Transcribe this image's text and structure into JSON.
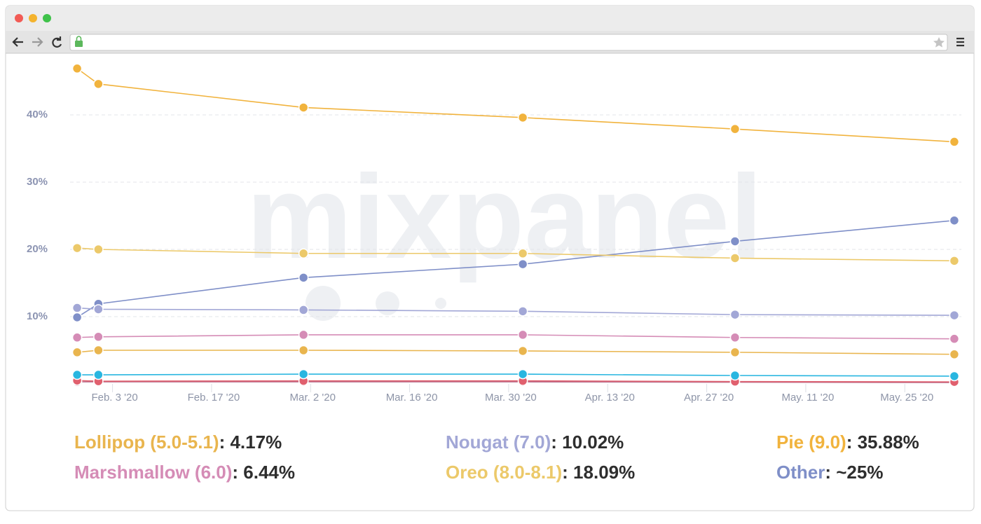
{
  "chart_data": {
    "type": "line",
    "watermark": "mixpanel",
    "x": [
      "2020-01-29",
      "2020-02-01",
      "2020-03-01",
      "2020-04-01",
      "2020-05-01",
      "2020-06-01"
    ],
    "xlim": [
      "2020-01-28",
      "2020-06-02"
    ],
    "xticks": [
      {
        "value": "2020-02-03",
        "label": "Feb. 3 '20"
      },
      {
        "value": "2020-02-17",
        "label": "Feb. 17 '20"
      },
      {
        "value": "2020-03-02",
        "label": "Mar. 2 '20"
      },
      {
        "value": "2020-03-16",
        "label": "Mar. 16 '20"
      },
      {
        "value": "2020-03-30",
        "label": "Mar. 30 '20"
      },
      {
        "value": "2020-04-13",
        "label": "Apr. 13 '20"
      },
      {
        "value": "2020-04-27",
        "label": "Apr. 27 '20"
      },
      {
        "value": "2020-05-11",
        "label": "May. 11 '20"
      },
      {
        "value": "2020-05-25",
        "label": "May. 25 '20"
      }
    ],
    "ylim": [
      0,
      48.75
    ],
    "yticks": [
      {
        "value": 10,
        "label": "10%"
      },
      {
        "value": 20,
        "label": "20%"
      },
      {
        "value": 30,
        "label": "30%"
      },
      {
        "value": 40,
        "label": "40%"
      }
    ],
    "grid": true,
    "series": [
      {
        "name": "Lollipop (5.0-5.1)",
        "summary": ": 4.17%",
        "color": "#e9b54e",
        "values": [
          4.7,
          5.0,
          5.0,
          4.9,
          4.7,
          4.4
        ]
      },
      {
        "name": "Marshmallow (6.0)",
        "summary": ": 6.44%",
        "color": "#d58cb6",
        "values": [
          6.9,
          7.0,
          7.3,
          7.3,
          6.9,
          6.7
        ]
      },
      {
        "name": "Nougat (7.0)",
        "summary": ": 10.02%",
        "color": "#a2a7d6",
        "values": [
          11.3,
          11.1,
          11.0,
          10.8,
          10.3,
          10.2
        ]
      },
      {
        "name": "Oreo (8.0-8.1)",
        "summary": ": 18.09%",
        "color": "#ecc96a",
        "values": [
          20.2,
          20.0,
          19.4,
          19.4,
          18.7,
          18.3
        ]
      },
      {
        "name": "Pie (9.0)",
        "summary": ": 35.88%",
        "color": "#f1b33d",
        "values": [
          46.9,
          44.6,
          41.1,
          39.6,
          37.9,
          36.0
        ]
      },
      {
        "name": "Other",
        "summary": ": ~25%",
        "color": "#7f8fc8",
        "values": [
          9.9,
          11.9,
          15.8,
          17.8,
          21.2,
          24.3
        ]
      },
      {
        "color": "#29b6e0",
        "values": [
          1.35,
          1.35,
          1.45,
          1.45,
          1.25,
          1.15
        ]
      },
      {
        "color": "#e0606e",
        "values": [
          0.5,
          0.4,
          0.45,
          0.45,
          0.35,
          0.3
        ]
      },
      {
        "color": "#b9718f",
        "values": [
          0.3,
          0.3,
          0.3,
          0.3,
          0.25,
          0.2
        ]
      }
    ]
  }
}
